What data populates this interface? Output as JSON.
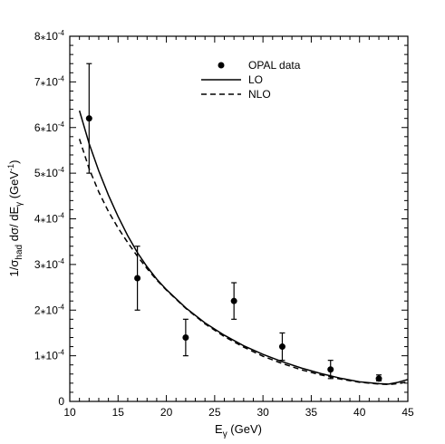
{
  "chart_data": {
    "type": "scatter",
    "xlabel": "E_γ (GeV)",
    "ylabel": "1/σ_had dσ/ dE_γ (GeV⁻¹)",
    "xlim": [
      10,
      45
    ],
    "ylim": [
      0,
      0.0008
    ],
    "x_ticks": [
      10,
      15,
      20,
      25,
      30,
      35,
      40,
      45
    ],
    "y_ticks": [
      {
        "value": 0,
        "label": "0"
      },
      {
        "value": 0.0001,
        "mant": "1",
        "exp": "-4"
      },
      {
        "value": 0.0002,
        "mant": "2",
        "exp": "-4"
      },
      {
        "value": 0.0003,
        "mant": "3",
        "exp": "-4"
      },
      {
        "value": 0.0004,
        "mant": "4",
        "exp": "-4"
      },
      {
        "value": 0.0005,
        "mant": "5",
        "exp": "-4"
      },
      {
        "value": 0.0006,
        "mant": "6",
        "exp": "-4"
      },
      {
        "value": 0.0007,
        "mant": "7",
        "exp": "-4"
      },
      {
        "value": 0.0008,
        "mant": "8",
        "exp": "-4"
      }
    ],
    "legend_position": "top-right",
    "series": [
      {
        "name": "OPAL data",
        "type": "scatter-errorbar",
        "points": [
          {
            "x": 12,
            "y": 0.00062,
            "ylo": 0.0005,
            "yhi": 0.00074
          },
          {
            "x": 17,
            "y": 0.00027,
            "ylo": 0.0002,
            "yhi": 0.00034
          },
          {
            "x": 22,
            "y": 0.00014,
            "ylo": 0.0001,
            "yhi": 0.00018
          },
          {
            "x": 27,
            "y": 0.00022,
            "ylo": 0.00018,
            "yhi": 0.00026
          },
          {
            "x": 32,
            "y": 0.00012,
            "ylo": 9e-05,
            "yhi": 0.00015
          },
          {
            "x": 37,
            "y": 7e-05,
            "ylo": 5e-05,
            "yhi": 9e-05
          },
          {
            "x": 42,
            "y": 5e-05,
            "ylo": 4.5e-05,
            "yhi": 5.8e-05
          }
        ]
      },
      {
        "name": "LO",
        "type": "line",
        "style": "solid",
        "x": [
          11,
          12,
          13,
          14,
          15,
          16,
          17,
          18,
          19,
          20,
          22,
          24,
          26,
          28,
          30,
          32,
          34,
          36,
          38,
          40,
          42,
          43,
          44,
          45
        ],
        "y": [
          0.000637,
          0.000565,
          0.000505,
          0.000452,
          0.000405,
          0.000363,
          0.000326,
          0.000295,
          0.000268,
          0.000245,
          0.000205,
          0.000172,
          0.000145,
          0.000122,
          0.000103,
          8.7e-05,
          7.3e-05,
          6.1e-05,
          5.1e-05,
          4.3e-05,
          3.9e-05,
          3.8e-05,
          4.2e-05,
          4.8e-05
        ]
      },
      {
        "name": "NLO",
        "type": "line",
        "style": "dashed",
        "x": [
          11,
          12,
          13,
          14,
          15,
          16,
          17,
          18,
          19,
          20,
          22,
          24,
          26,
          28,
          30,
          32,
          34,
          36,
          38,
          40,
          42,
          43,
          44,
          45
        ],
        "y": [
          0.000575,
          0.00051,
          0.000459,
          0.000416,
          0.00038,
          0.000348,
          0.000318,
          0.000291,
          0.000266,
          0.000244,
          0.000204,
          0.00017,
          0.000142,
          0.000119,
          9.9e-05,
          8.3e-05,
          6.9e-05,
          5.8e-05,
          4.9e-05,
          4.2e-05,
          3.8e-05,
          3.7e-05,
          3.9e-05,
          4.3e-05
        ]
      }
    ]
  }
}
